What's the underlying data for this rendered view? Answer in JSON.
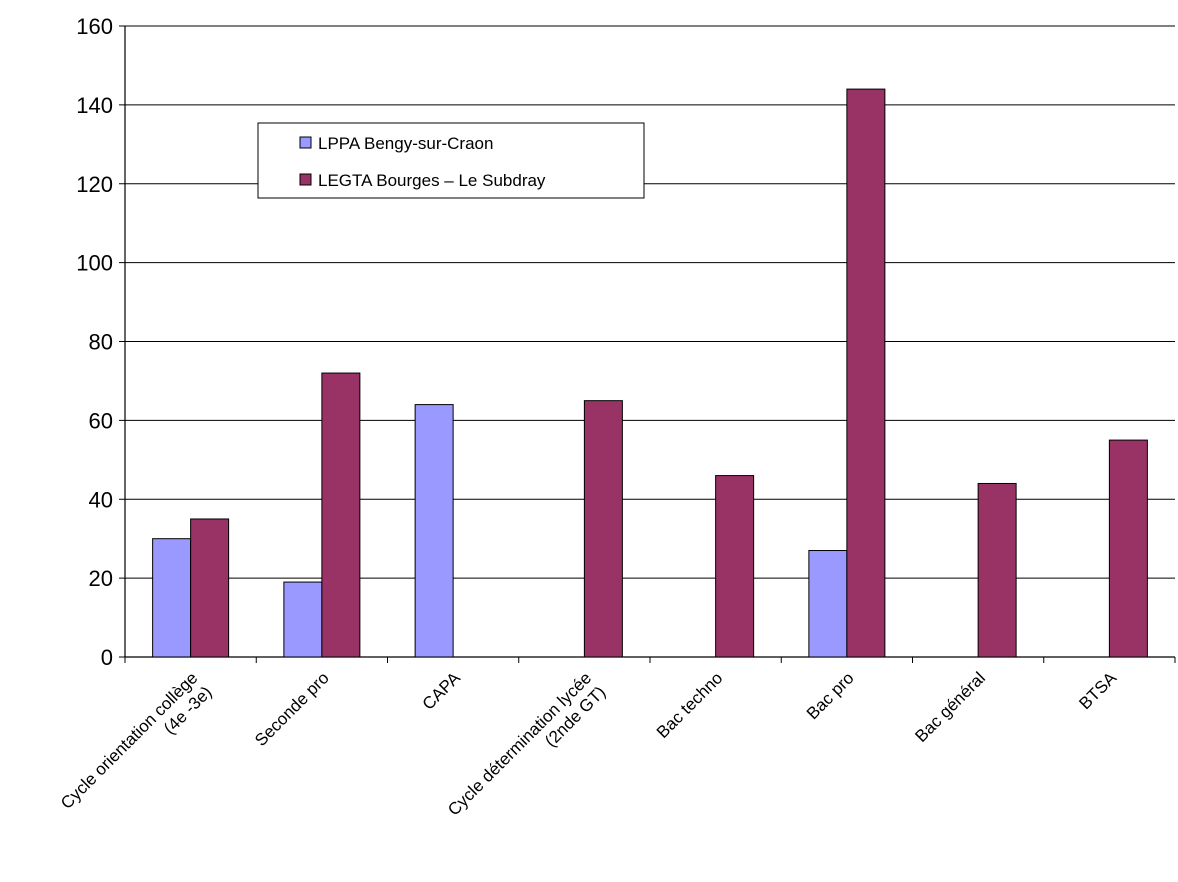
{
  "chart_data": {
    "type": "bar",
    "title": "",
    "xlabel": "",
    "ylabel": "",
    "ylim": [
      0,
      160
    ],
    "yticks": [
      0,
      20,
      40,
      60,
      80,
      100,
      120,
      140,
      160
    ],
    "grid": true,
    "legend_position": "top-left",
    "categories": [
      [
        "Cycle orientation collège",
        "(4e -3e)"
      ],
      [
        "Seconde pro"
      ],
      [
        "CAPA"
      ],
      [
        "Cycle détermination lycée",
        "(2nde GT)"
      ],
      [
        "Bac techno"
      ],
      [
        "Bac pro"
      ],
      [
        "Bac général"
      ],
      [
        "BTSA"
      ]
    ],
    "series": [
      {
        "name": "LPPA Bengy-sur-Craon",
        "color": "#9999ff",
        "values": [
          30,
          19,
          64,
          0,
          0,
          27,
          0,
          0
        ]
      },
      {
        "name": "LEGTA Bourges – Le Subdray",
        "color": "#993366",
        "values": [
          35,
          72,
          0,
          65,
          46,
          144,
          44,
          55
        ]
      }
    ]
  }
}
